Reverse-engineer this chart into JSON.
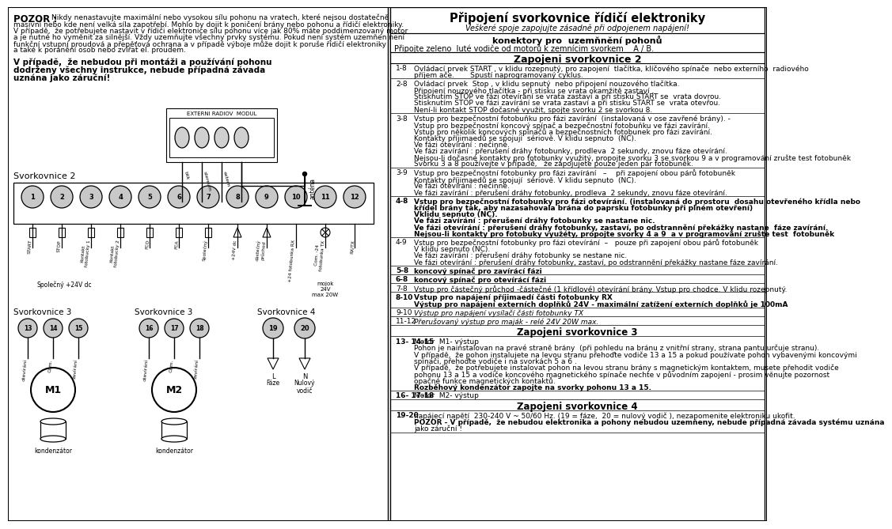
{
  "bg_color": "#ffffff",
  "title_right": "Připojení svorkovnice řídičí elektroniky",
  "subtitle_right": "Veškeré spoje zapojujte zásadně při odpojenem napájení!",
  "warning_title": "POZOR : ",
  "warning_lines": [
    "Nikdy nenastavujte maximální nebo vysokou sílu pohonu na vratech, které nejsou dostatečně",
    "masivní nebo kde není velká síla zapotřebí. Mohlo by dojit k poničení brány nebo pohonu a řídičí elektroniky.",
    "V případě,  že potřebujete nastavit v řídiči elektronice sílu pohonu více jak 80% máte poddimenzovaný motor",
    "a je nutné ho vyměnit za silnější. Vždy uzemňujte všechny prvky systému. Pokud není systém uzemňen není",
    "funkční vstupní proudová a přepěťová ochrana a v případě výboje může dojit k poruše řídičí elektroniky",
    "a také k poranění osob nebo zvířat el. proudem."
  ],
  "bold_lines": [
    "V případě,  že nebudou při montáži a používání pohonu",
    "dodrženy všechny instrukce, nebude případná závada",
    "uznána jako záruční!"
  ],
  "connector_label": "konektory pro  uzemňnění pohonů",
  "connector_text": "Připojte zeleno  luté vodiče od motorů k zemnícim svorkem    A / B.",
  "section2_title": "Zapojeni svorkovnice 2",
  "rows": [
    {
      "num": "1-8",
      "bold_first": false,
      "italic": false,
      "lines": [
        "Ovládací prvek START , v klidu rozepnutý, pro zapojení  tlačítka, klíčového spínače  nebo externího  radiového",
        "příjem ače.       Spustí naprogramovaný cyklus."
      ]
    },
    {
      "num": "2-8",
      "bold_first": false,
      "italic": false,
      "lines": [
        "Ovládací prvek  Stop , v klidu sepnutý  nebo připojení nouzového tlačítka.",
        "Připojení nouzového tlačítka - při stisku se vrata okamžitě zastaví ,",
        "Stisknutím STOP ve fázi otevírání se vrata zastaví a při stisku START se  vrata dovrou.",
        "Stisknutím STOP ve fázi zavírání se vrata zastaví a při stisku START se  vrata otevřou.",
        "Není-li kontakt STOP dočasné využit, spojte svorku 2 se svorkou 8."
      ]
    },
    {
      "num": "3-8",
      "bold_first": false,
      "italic": false,
      "lines": [
        "Vstup pro bezpečnostní fotobuňku pro fázi zavírání  (instalovaná v ose zavřené brány). -",
        "Vstup pro bezpečnostní koncový spínač a bezpečnostní fotobuňku ve fázi zavírání.",
        "Vstup pro několik koncových spínačů a bezpečnostních fotobunek pro fázi zavírání.",
        "Kontakty příjimaedů se spojují  sériově. V klidu sepnuto  (NC).",
        "Ve fázi otevírání : nečinné.",
        "Ve fázi zavírání : přerušení dráhy fotobunky, prodleva  2 sekundy, znovu fáze otevírání.",
        "Nejsou-li dočasné kontakty pro fotobunky využitý, propojte svorku 3 se svorkou 9 a v programování zrušte test fotobuněk",
        "Svorku 3 a 8 používejte v případě,   že zapojujete pouze jeden pár fotobuněk."
      ]
    },
    {
      "num": "3-9",
      "bold_first": false,
      "italic": false,
      "lines": [
        "Vstup pro bezpečnostní fotobunky pro fázi zavírání   –    při zapojení obou párů fotobuněk",
        "Kontakty příjimaedů se spojují  sériově. V klidu sepnuto  (NC).",
        "Ve fázi otevírání : nečinné.",
        "Ve fázi zavírání : přerušení dráhy fotobunky, prodleva  2 sekundy, znovu fáze otevírání."
      ]
    },
    {
      "num": "4-8",
      "bold_first": true,
      "italic": false,
      "lines": [
        "Vstup pro bezpečnostní fotobunky pro fázi otevírání. (instalovaná do prostoru  dosahu otevřeného křídla nebo",
        "křídel brány tak, aby nazasahovala brána do paprsku fotobunky při plném otevření)",
        "Vklidu sepnuto (NC).",
        "Ve fázi zavírání : přerušení dráhy fotobunky se nastane nic.",
        "Ve fázi otevírání : přerušení dráhy fotobunky, zastaví, po odstrannění překážky nastane  fáze zavírání.",
        "Nejsou-li kontakty pro fotobuky využéty, propojte svorky 4 a 9  a v programování zrušte test  fotobuněk"
      ]
    },
    {
      "num": "4-9",
      "bold_first": false,
      "italic": false,
      "lines": [
        "Vstup pro bezpečnostní fotobunky pro fázi otevírání  –   pouze při zapojení obou párů fotobuněk",
        "V klidu sepnuto (NC).",
        "Ve fázi zavírání : přerušení dráhy fotobunky se nestane nic.",
        "Ve fázi otevírání : přerušení dráhy fotobunky, zastaví, po odstrannění překážky nastane fáze zavírání."
      ]
    },
    {
      "num": "5-8",
      "bold_first": true,
      "italic": false,
      "lines": [
        "koncový spínač pro zavírácí fázi"
      ]
    },
    {
      "num": "6-8",
      "bold_first": true,
      "italic": false,
      "lines": [
        "koncový spínač pro otevírácí fázi"
      ]
    },
    {
      "num": "7-8",
      "bold_first": false,
      "italic": false,
      "lines": [
        "Vstup pro částečný průchod -částečné (1 křídlové) otevírání brány. Vstup pro chodce. V klidu rozepnutý."
      ]
    },
    {
      "num": "8-10",
      "bold_first": true,
      "italic": false,
      "lines": [
        "Vstup pro napájení příjimaedí části fotobunky RX",
        "Výstup pro napájení externích doplňků 24V - maximální zatížení externích doplňků je 100mA"
      ]
    },
    {
      "num": "9-10",
      "bold_first": false,
      "italic": true,
      "lines": [
        "Výstup pro napájení vysílačí části fotobunky TX"
      ]
    },
    {
      "num": "11-12",
      "bold_first": false,
      "italic": true,
      "lines": [
        "Přerušovaný výstup pro maják - relé 24V 20W max."
      ]
    }
  ],
  "section3_title": "Zapojeni svorkovnice 3",
  "section3_rows": [
    {
      "num": "13- 14-15",
      "lines": [
        "Motor  M1- výstup",
        "Pohon je nainstalovan na pravé straně brány  (při pohledu na bránu z vnitřní strany, strana pantu určuje stranu).",
        "V případě,  že pohon instalujete na levou stranu přehoďte vodiče 13 a 15 a pokud používate pohon vybavenými koncovými",
        "spínači, přehoďte vodiče i na svorkách 5 a 6 .",
        "V případě,  že potřebujete instalovat pohon na levou stranu brány s magnetickým kontaktem, musete přehodit vodiče",
        "pohonu 13 a 15 a vodiče koncového magnetického spínače nechte v původním zapojení - prosim věnujte pozornost",
        "opačné funkce magnetických kontaktů.",
        "Rozběhový kondenzátor zapojte na svorky pohonu 13 a 15."
      ]
    },
    {
      "num": "16- 17-18",
      "lines": [
        "Motor  M2- výstup"
      ]
    }
  ],
  "section4_title": "Zapojeni svorkovnice 4",
  "section4_rows": [
    {
      "num": "19-20",
      "lines": [
        "napájecí napětí  230-240 V ~ 50/60 Hz. (19 = fáze,  20 = nulový vodič ), nezapomenite elektroniku ukofit.",
        "POZOR - V případě,  že nebudou elektronika a pohony nebudou uzemňeny, nebude případná závada systému uznána",
        "jako záruční !"
      ]
    }
  ],
  "term_labels": [
    "START",
    "STOP",
    "Kontakt\nfotobucky 1",
    "Kontakt\nfotobucky 2",
    "FCO",
    "FCA",
    "Společný",
    "",
    "dástečný\nprůchod",
    "+24 fotobunka RX",
    "Com. -24\nfotobunka TX",
    "RX/TX"
  ],
  "bottom_labels_left": "Společný     +24V dc",
  "bottom_labels_right": "24V\nmax 20W"
}
